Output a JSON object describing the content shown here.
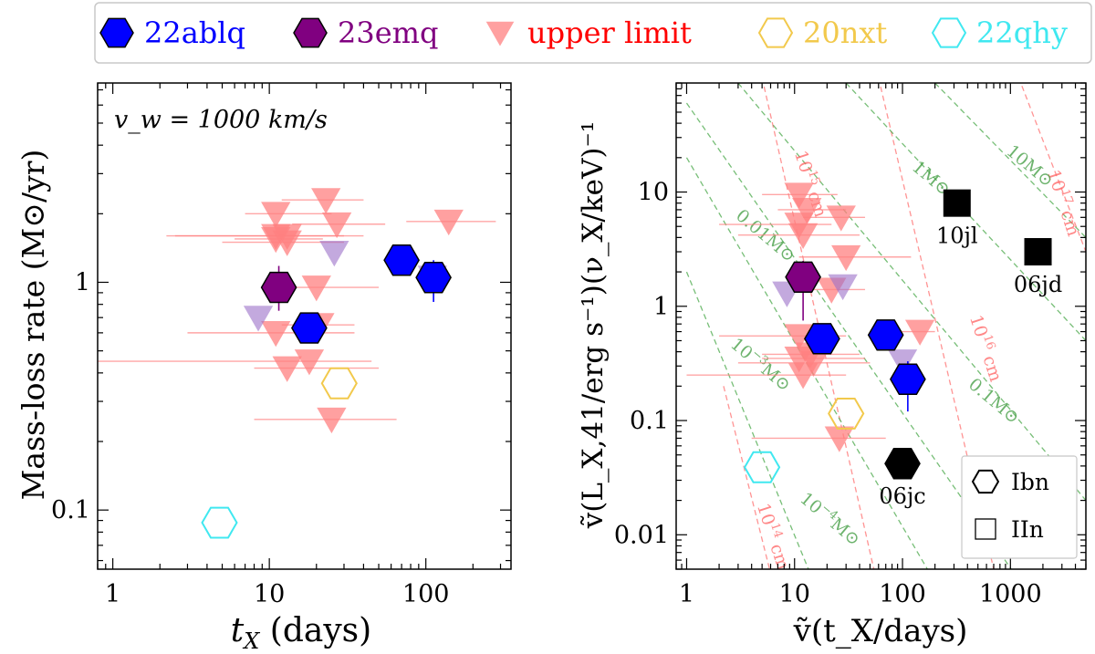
{
  "legend": {
    "items": [
      {
        "label": "22ablq",
        "marker": "hexagon",
        "fill": "#0000ff",
        "stroke": "#000000",
        "text_color": "#0000ff"
      },
      {
        "label": "23emq",
        "marker": "hexagon",
        "fill": "#800080",
        "stroke": "#000000",
        "text_color": "#800080"
      },
      {
        "label": "upper limit",
        "marker": "triangle-down",
        "fill": "#ff8080",
        "stroke": "#ff8080",
        "text_color": "#ff0000"
      },
      {
        "label": "20nxt",
        "marker": "hexagon-open",
        "fill": "none",
        "stroke": "#f2c94c",
        "text_color": "#f2c94c"
      },
      {
        "label": "22qhy",
        "marker": "hexagon-open",
        "fill": "none",
        "stroke": "#40e8f0",
        "text_color": "#40e8f0"
      }
    ]
  },
  "chart_data": [
    {
      "type": "scatter",
      "panel": "left",
      "xscale": "log",
      "yscale": "log",
      "xlim": [
        0.8,
        350
      ],
      "ylim": [
        0.055,
        7.5
      ],
      "xlabel_main": "t",
      "xlabel_sub": "X",
      "xlabel_rest": " (days)",
      "ylabel": "Mass-loss rate (M⊙/yr)",
      "xticks": [
        1,
        10,
        100
      ],
      "xtick_labels": [
        "1",
        "10",
        "100"
      ],
      "yticks": [
        0.1,
        1
      ],
      "ytick_labels": [
        "0.1",
        "1"
      ],
      "annotation": "v_w = 1000 km/s",
      "series": [
        {
          "name": "22ablq",
          "marker": "hexagon",
          "fill": "#0000ff",
          "stroke": "#000000",
          "points": [
            {
              "x": 18,
              "y": 0.63
            },
            {
              "x": 70,
              "y": 1.25
            },
            {
              "x": 112,
              "y": 1.05,
              "yerr_low": 0.82,
              "yerr_high": 1.25
            }
          ]
        },
        {
          "name": "23emq",
          "marker": "hexagon",
          "fill": "#800080",
          "stroke": "#000000",
          "points": [
            {
              "x": 11.5,
              "y": 0.95,
              "yerr_low": 0.75,
              "yerr_high": 1.18
            }
          ]
        },
        {
          "name": "upper limit",
          "marker": "triangle-down",
          "fill": "#ff8080",
          "alpha": 0.75,
          "points": [
            {
              "x": 11,
              "y": 2.0,
              "xlo": 7,
              "xhi": 25
            },
            {
              "x": 11,
              "y": 1.6,
              "xlo": 2.5,
              "xhi": 30
            },
            {
              "x": 13,
              "y": 1.5,
              "xlo": 5,
              "xhi": 30
            },
            {
              "x": 11,
              "y": 1.55,
              "xlo": 6,
              "xhi": 22
            },
            {
              "x": 13,
              "y": 1.6,
              "xlo": 2.2,
              "xhi": 40
            },
            {
              "x": 20,
              "y": 0.95,
              "xlo": 9,
              "xhi": 50
            },
            {
              "x": 11,
              "y": 0.6,
              "xlo": 3,
              "xhi": 35
            },
            {
              "x": 21,
              "y": 0.65,
              "xlo": 12,
              "xhi": 35
            },
            {
              "x": 18,
              "y": 0.45,
              "xlo": 0.8,
              "xhi": 45
            },
            {
              "x": 13,
              "y": 0.42,
              "xlo": 8,
              "xhi": 50
            },
            {
              "x": 23,
              "y": 2.3,
              "xlo": 12,
              "xhi": 40
            },
            {
              "x": 27,
              "y": 1.8,
              "xlo": 14,
              "xhi": 55
            },
            {
              "x": 25,
              "y": 0.25,
              "xlo": 8,
              "xhi": 65
            },
            {
              "x": 140,
              "y": 1.85,
              "xlo": 75,
              "xhi": 280
            }
          ]
        },
        {
          "name": "upper limit (violet)",
          "marker": "triangle-down",
          "fill": "#9b70c8",
          "alpha": 0.6,
          "points": [
            {
              "x": 26,
              "y": 1.35
            },
            {
              "x": 8.5,
              "y": 0.7
            },
            {
              "x": 110,
              "y": 1.05
            }
          ]
        },
        {
          "name": "20nxt",
          "marker": "hexagon-open",
          "stroke": "#f2c94c",
          "points": [
            {
              "x": 28,
              "y": 0.36
            }
          ]
        },
        {
          "name": "22qhy",
          "marker": "hexagon-open",
          "stroke": "#40e8f0",
          "points": [
            {
              "x": 4.8,
              "y": 0.088
            }
          ]
        }
      ]
    },
    {
      "type": "scatter",
      "panel": "right",
      "xscale": "log",
      "yscale": "log",
      "xlim": [
        0.8,
        5000
      ],
      "ylim": [
        0.005,
        90
      ],
      "xlabel": "ṽ(t_X/days)",
      "ylabel": "ṽ(L_X,41/erg s⁻¹)(ν_X/keV)⁻¹",
      "xticks": [
        1,
        10,
        100,
        1000
      ],
      "xtick_labels": [
        "1",
        "10",
        "100",
        "1000"
      ],
      "yticks": [
        0.01,
        0.1,
        1,
        10
      ],
      "ytick_labels": [
        "0.01",
        "0.1",
        "1",
        "10"
      ],
      "legend_items": [
        {
          "label": "Ibn",
          "marker": "hexagon-open"
        },
        {
          "label": "IIn",
          "marker": "square-open"
        }
      ],
      "radius_lines": [
        {
          "label_base": "10",
          "label_exp": "14",
          "label_unit": " cm",
          "lx": 4.5,
          "ly": 0.018
        },
        {
          "label_base": "10",
          "label_exp": "15",
          "label_unit": " cm",
          "lx": 10,
          "ly": 22
        },
        {
          "label_base": "10",
          "label_exp": "16",
          "label_unit": " cm",
          "lx": 420,
          "ly": 0.8
        },
        {
          "label_base": "10",
          "label_exp": "17",
          "label_unit": " cm",
          "lx": 2200,
          "ly": 15
        }
      ],
      "mass_lines": [
        {
          "label_base": "10",
          "label_exp": "−4",
          "label_unit": "M⊙",
          "lx": 11,
          "ly": 0.02
        },
        {
          "label_base": "10",
          "label_exp": "−3",
          "label_unit": "M⊙",
          "lx": 2.5,
          "ly": 0.45
        },
        {
          "label_base": "0.01",
          "label_exp": "",
          "label_unit": "M⊙",
          "lx": 2.8,
          "ly": 6
        },
        {
          "label_base": "0.1",
          "label_exp": "",
          "label_unit": "M⊙",
          "lx": 400,
          "ly": 0.2
        },
        {
          "label_base": "1",
          "label_exp": "",
          "label_unit": "M⊙",
          "lx": 120,
          "ly": 16
        },
        {
          "label_base": "10",
          "label_exp": "",
          "label_unit": "M⊙",
          "lx": 900,
          "ly": 22
        }
      ],
      "series": [
        {
          "name": "22ablq",
          "marker": "hexagon",
          "fill": "#0000ff",
          "stroke": "#000000",
          "points": [
            {
              "x": 18,
              "y": 0.52
            },
            {
              "x": 70,
              "y": 0.56
            },
            {
              "x": 112,
              "y": 0.23,
              "yerr_low": 0.12,
              "yerr_high": 0.33
            }
          ]
        },
        {
          "name": "23emq",
          "marker": "hexagon",
          "fill": "#800080",
          "stroke": "#000000",
          "points": [
            {
              "x": 12,
              "y": 1.8,
              "yerr_low": 0.75,
              "yerr_high": 2.5
            }
          ]
        },
        {
          "name": "upper limit",
          "marker": "triangle-down",
          "fill": "#ff8080",
          "alpha": 0.75,
          "points": [
            {
              "x": 11,
              "y": 9.5,
              "xlo": 5,
              "xhi": 25
            },
            {
              "x": 11,
              "y": 5.2,
              "xlo": 2,
              "xhi": 22
            },
            {
              "x": 12,
              "y": 4.2,
              "xlo": 3,
              "xhi": 40
            },
            {
              "x": 13,
              "y": 7.0,
              "xlo": 7,
              "xhi": 30
            },
            {
              "x": 27,
              "y": 6.0,
              "xlo": 12,
              "xhi": 45
            },
            {
              "x": 30,
              "y": 2.7,
              "xlo": 11,
              "xhi": 120
            },
            {
              "x": 22,
              "y": 1.4,
              "xlo": 12,
              "xhi": 45
            },
            {
              "x": 11,
              "y": 0.55,
              "xlo": 2,
              "xhi": 30
            },
            {
              "x": 11,
              "y": 0.35,
              "xlo": 5,
              "xhi": 45
            },
            {
              "x": 14,
              "y": 0.38,
              "xlo": 5,
              "xhi": 40
            },
            {
              "x": 15,
              "y": 0.32,
              "xlo": 3,
              "xhi": 50
            },
            {
              "x": 12,
              "y": 0.25,
              "xlo": 1,
              "xhi": 30
            },
            {
              "x": 26,
              "y": 0.07,
              "xlo": 4,
              "xhi": 70
            },
            {
              "x": 145,
              "y": 0.6,
              "xlo": 70,
              "xhi": 200
            }
          ]
        },
        {
          "name": "upper limit (violet)",
          "marker": "triangle-down",
          "fill": "#9b70c8",
          "alpha": 0.6,
          "points": [
            {
              "x": 8.5,
              "y": 1.3
            },
            {
              "x": 28,
              "y": 1.5
            },
            {
              "x": 100,
              "y": 0.33
            }
          ]
        },
        {
          "name": "20nxt",
          "marker": "hexagon-open",
          "stroke": "#f2c94c",
          "points": [
            {
              "x": 30,
              "y": 0.115
            }
          ]
        },
        {
          "name": "22qhy",
          "marker": "hexagon-open",
          "stroke": "#40e8f0",
          "points": [
            {
              "x": 5,
              "y": 0.039
            }
          ]
        },
        {
          "name": "06jc",
          "marker": "hexagon",
          "fill": "#000000",
          "stroke": "#000000",
          "label": "06jc",
          "points": [
            {
              "x": 100,
              "y": 0.042
            }
          ]
        },
        {
          "name": "10jl",
          "marker": "square",
          "fill": "#000000",
          "stroke": "#000000",
          "label": "10jl",
          "points": [
            {
              "x": 320,
              "y": 8.0
            }
          ]
        },
        {
          "name": "06jd",
          "marker": "square",
          "fill": "#000000",
          "stroke": "#000000",
          "label": "06jd",
          "points": [
            {
              "x": 1800,
              "y": 3.0
            }
          ]
        }
      ]
    }
  ]
}
